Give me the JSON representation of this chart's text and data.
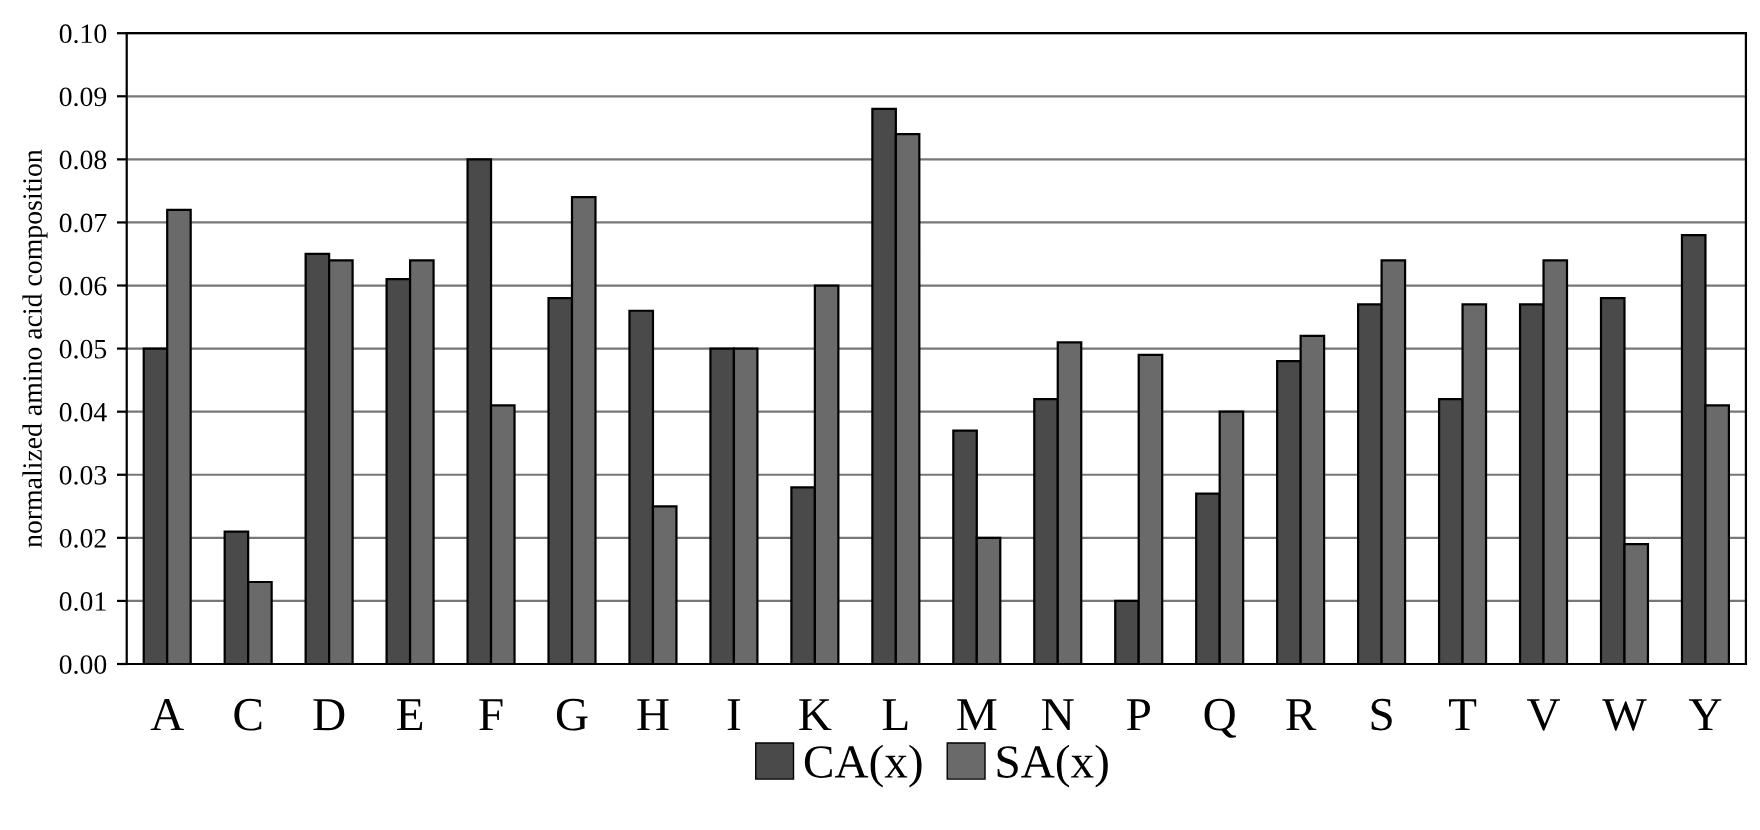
{
  "chart_data": {
    "type": "bar",
    "ylabel": "normalized amino acid composition",
    "categories": [
      "A",
      "C",
      "D",
      "E",
      "F",
      "G",
      "H",
      "I",
      "K",
      "L",
      "M",
      "N",
      "P",
      "Q",
      "R",
      "S",
      "T",
      "V",
      "W",
      "Y"
    ],
    "series": [
      {
        "name": "CA(x)",
        "color": "#4a4a4a",
        "values": [
          0.05,
          0.021,
          0.065,
          0.061,
          0.08,
          0.058,
          0.056,
          0.05,
          0.028,
          0.088,
          0.037,
          0.042,
          0.01,
          0.027,
          0.048,
          0.057,
          0.042,
          0.057,
          0.058,
          0.068
        ]
      },
      {
        "name": "SA(x)",
        "color": "#6a6a6a",
        "values": [
          0.072,
          0.013,
          0.064,
          0.064,
          0.041,
          0.074,
          0.025,
          0.05,
          0.06,
          0.084,
          0.02,
          0.051,
          0.049,
          0.04,
          0.052,
          0.064,
          0.057,
          0.064,
          0.019,
          0.041
        ]
      }
    ],
    "ylim": [
      0,
      0.1
    ],
    "yticks": [
      {
        "value": 0,
        "label": "0.00"
      },
      {
        "value": 0.01,
        "label": "0.01"
      },
      {
        "value": 0.02,
        "label": "0.02"
      },
      {
        "value": 0.03,
        "label": "0.03"
      },
      {
        "value": 0.04,
        "label": "0.04"
      },
      {
        "value": 0.05,
        "label": "0.05"
      },
      {
        "value": 0.06,
        "label": "0.06"
      },
      {
        "value": 0.07,
        "label": "0.07"
      },
      {
        "value": 0.08,
        "label": "0.08"
      },
      {
        "value": 0.09,
        "label": "0.09"
      },
      {
        "value": 0.1,
        "label": "0.10"
      }
    ],
    "grid": "y",
    "legend": "bottom"
  }
}
